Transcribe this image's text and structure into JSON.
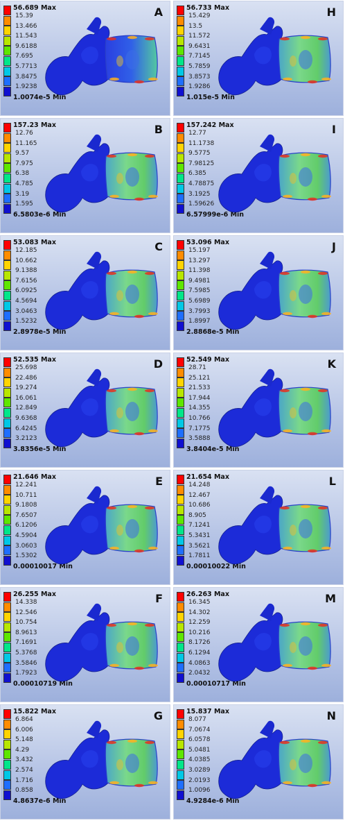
{
  "scale_colors": [
    "#ff0000",
    "#ff8c00",
    "#ffd400",
    "#b8e600",
    "#5ee600",
    "#00e68a",
    "#00c8e6",
    "#1e6eff",
    "#1010d0"
  ],
  "panels": [
    {
      "letter": "A",
      "max": "56.689 Max",
      "ticks": [
        "15.39",
        "13.466",
        "11.543",
        "9.6188",
        "7.695",
        "5.7713",
        "3.8475",
        "1.9238"
      ],
      "min": "1.0074e-5 Min"
    },
    {
      "letter": "B",
      "max": "157.23 Max",
      "ticks": [
        "12.76",
        "11.165",
        "9.57",
        "7.975",
        "6.38",
        "4.785",
        "3.19",
        "1.595"
      ],
      "min": "6.5803e-6 Min"
    },
    {
      "letter": "C",
      "max": "53.083 Max",
      "ticks": [
        "12.185",
        "10.662",
        "9.1388",
        "7.6156",
        "6.0925",
        "4.5694",
        "3.0463",
        "1.5232"
      ],
      "min": "2.8978e-5 Min"
    },
    {
      "letter": "D",
      "max": "52.535 Max",
      "ticks": [
        "25.698",
        "22.486",
        "19.274",
        "16.061",
        "12.849",
        "9.6368",
        "6.4245",
        "3.2123"
      ],
      "min": "3.8356e-5 Min"
    },
    {
      "letter": "E",
      "max": "21.646 Max",
      "ticks": [
        "12.241",
        "10.711",
        "9.1808",
        "7.6507",
        "6.1206",
        "4.5904",
        "3.0603",
        "1.5302"
      ],
      "min": "0.00010017 Min"
    },
    {
      "letter": "F",
      "max": "26.255 Max",
      "ticks": [
        "14.338",
        "12.546",
        "10.754",
        "8.9613",
        "7.1691",
        "5.3768",
        "3.5846",
        "1.7923"
      ],
      "min": "0.00010719 Min"
    },
    {
      "letter": "G",
      "max": "15.822 Max",
      "ticks": [
        "6.864",
        "6.006",
        "5.148",
        "4.29",
        "3.432",
        "2.574",
        "1.716",
        "0.858"
      ],
      "min": "4.8637e-6 Min"
    },
    {
      "letter": "H",
      "max": "56.733 Max",
      "ticks": [
        "15.429",
        "13.5",
        "11.572",
        "9.6431",
        "7.7145",
        "5.7859",
        "3.8573",
        "1.9286"
      ],
      "min": "1.015e-5 Min"
    },
    {
      "letter": "I",
      "max": "157.242 Max",
      "ticks": [
        "12.77",
        "11.1738",
        "9.5775",
        "7.98125",
        "6.385",
        "4.78875",
        "3.1925",
        "1.59626"
      ],
      "min": "6.57999e-6 Min"
    },
    {
      "letter": "J",
      "max": "53.096 Max",
      "ticks": [
        "15.197",
        "13.297",
        "11.398",
        "9.4981",
        "7.5985",
        "5.6989",
        "3.7993",
        "1.8997"
      ],
      "min": "2.8868e-5 Min"
    },
    {
      "letter": "K",
      "max": "52.549 Max",
      "ticks": [
        "28.71",
        "25.121",
        "21.533",
        "17.944",
        "14.355",
        "10.766",
        "7.1775",
        "3.5888"
      ],
      "min": "3.8404e-5 Min"
    },
    {
      "letter": "L",
      "max": "21.654 Max",
      "ticks": [
        "14.248",
        "12.467",
        "10.686",
        "8.905",
        "7.1241",
        "5.3431",
        "3.5621",
        "1.7811"
      ],
      "min": "0.00010022 Min"
    },
    {
      "letter": "M",
      "max": "26.263 Max",
      "ticks": [
        "16.345",
        "14.302",
        "12.259",
        "10.216",
        "8.1726",
        "6.1294",
        "4.0863",
        "2.0432"
      ],
      "min": "0.00010717 Min"
    },
    {
      "letter": "N",
      "max": "15.837 Max",
      "ticks": [
        "8.077",
        "7.0674",
        "6.0578",
        "5.0481",
        "4.0385",
        "3.0289",
        "2.0193",
        "1.0096"
      ],
      "min": "4.9284e-6 Min"
    }
  ]
}
